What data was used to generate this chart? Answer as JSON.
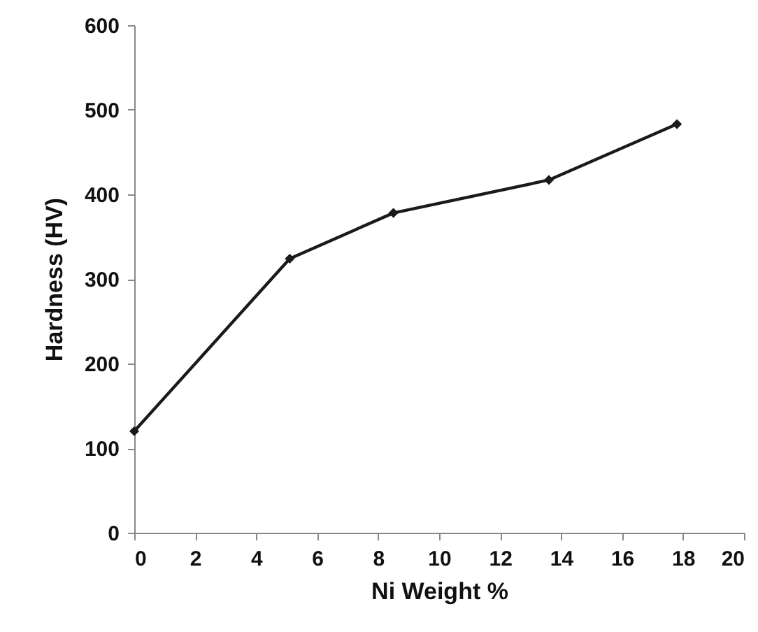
{
  "chart_data": {
    "type": "line",
    "xlabel": "Ni Weight %",
    "ylabel": "Hardness (HV)",
    "x": [
      0,
      5.1,
      8.5,
      13.6,
      17.8
    ],
    "series": [
      {
        "color": "#1a1a1a",
        "values": [
          120,
          324,
          378,
          417,
          483
        ]
      }
    ],
    "xlim": [
      0,
      20
    ],
    "xticks": [
      0,
      2,
      4,
      6,
      8,
      10,
      12,
      14,
      16,
      18,
      20
    ],
    "ylim": [
      0,
      600
    ],
    "yticks": [
      0,
      100,
      200,
      300,
      400,
      500,
      600
    ],
    "grid": false,
    "marker": "diamond",
    "line_style": "solid"
  }
}
